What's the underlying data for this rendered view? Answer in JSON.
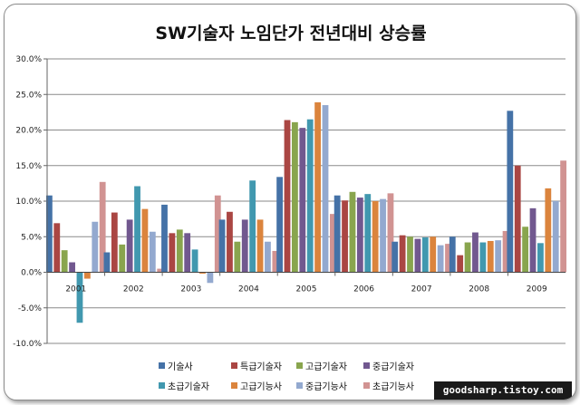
{
  "watermark": "goodsharp.tistoy.com",
  "chart_data": {
    "type": "bar",
    "title": "SW기술자 노임단가 전년대비 상승률",
    "xlabel": "",
    "ylabel": "",
    "ylim": [
      -0.1,
      0.3
    ],
    "yticks": [
      -0.1,
      -0.05,
      0.0,
      0.05,
      0.1,
      0.15,
      0.2,
      0.25,
      0.3
    ],
    "ytick_labels": [
      "-10.0%",
      "-5.0%",
      "0.0%",
      "5.0%",
      "10.0%",
      "15.0%",
      "20.0%",
      "25.0%",
      "30.0%"
    ],
    "grid": true,
    "legend_position": "bottom",
    "categories": [
      "2001",
      "2002",
      "2003",
      "2004",
      "2005",
      "2006",
      "2007",
      "2008",
      "2009"
    ],
    "series": [
      {
        "name": "기술사",
        "color": "#4572A7",
        "values": [
          0.108,
          0.028,
          0.095,
          0.074,
          0.134,
          0.108,
          0.043,
          0.05,
          0.227
        ]
      },
      {
        "name": "특급기술자",
        "color": "#AA4643",
        "values": [
          0.069,
          0.084,
          0.055,
          0.085,
          0.214,
          0.101,
          0.052,
          0.024,
          0.15
        ]
      },
      {
        "name": "고급기술자",
        "color": "#89A54E",
        "values": [
          0.031,
          0.039,
          0.06,
          0.043,
          0.211,
          0.113,
          0.05,
          0.042,
          0.064
        ]
      },
      {
        "name": "중급기술자",
        "color": "#71588F",
        "values": [
          0.014,
          0.074,
          0.055,
          0.074,
          0.203,
          0.105,
          0.047,
          0.056,
          0.09
        ]
      },
      {
        "name": "초급기술자",
        "color": "#4198AF",
        "values": [
          -0.071,
          0.121,
          0.032,
          0.129,
          0.215,
          0.11,
          0.049,
          0.042,
          0.041
        ]
      },
      {
        "name": "고급기능사",
        "color": "#DB843D",
        "values": [
          -0.009,
          0.089,
          -0.002,
          0.074,
          0.239,
          0.1,
          0.05,
          0.044,
          0.118
        ]
      },
      {
        "name": "중급기능사",
        "color": "#93A9CF",
        "values": [
          0.071,
          0.057,
          -0.015,
          0.043,
          0.235,
          0.103,
          0.038,
          0.045,
          0.1
        ]
      },
      {
        "name": "초급기능사",
        "color": "#D19392",
        "values": [
          0.127,
          0.005,
          0.108,
          0.03,
          0.082,
          0.111,
          0.04,
          0.058,
          0.157
        ]
      }
    ]
  }
}
